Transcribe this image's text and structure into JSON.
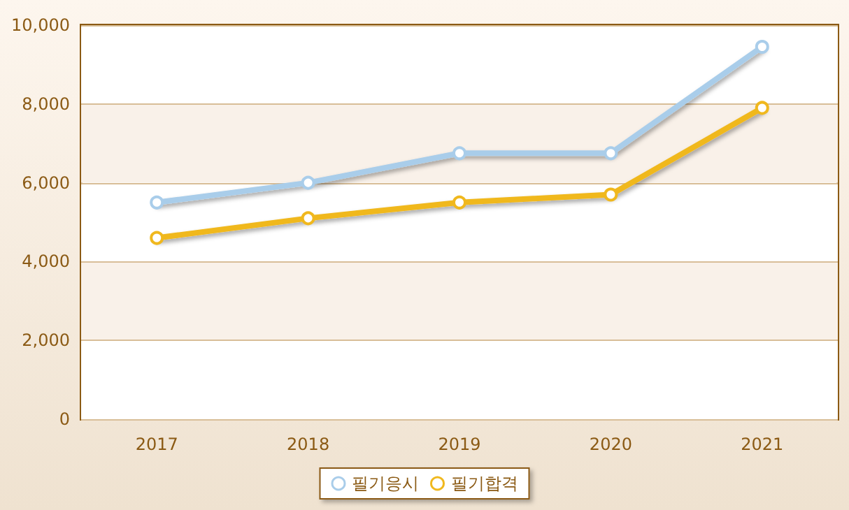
{
  "chart_data": {
    "type": "line",
    "categories": [
      "2017",
      "2018",
      "2019",
      "2020",
      "2021"
    ],
    "series": [
      {
        "name": "필기응시",
        "color": "#a9cdea",
        "values": [
          5500,
          6000,
          6750,
          6750,
          9450
        ]
      },
      {
        "name": "필기합격",
        "color": "#f0b81e",
        "values": [
          4600,
          5100,
          5500,
          5700,
          7900
        ]
      }
    ],
    "ylim": [
      0,
      10000
    ],
    "yticks": [
      0,
      {
        "value": 2000,
        "label": "2,000"
      },
      {
        "value": 4000,
        "label": "4,000"
      },
      {
        "value": 6000,
        "label": "6,000"
      },
      {
        "value": 8000,
        "label": "8,000"
      },
      {
        "value": 10000,
        "label": "10,000"
      }
    ],
    "grid": "y",
    "legend": "bottom",
    "marker": "circle",
    "line_style": "solid"
  }
}
